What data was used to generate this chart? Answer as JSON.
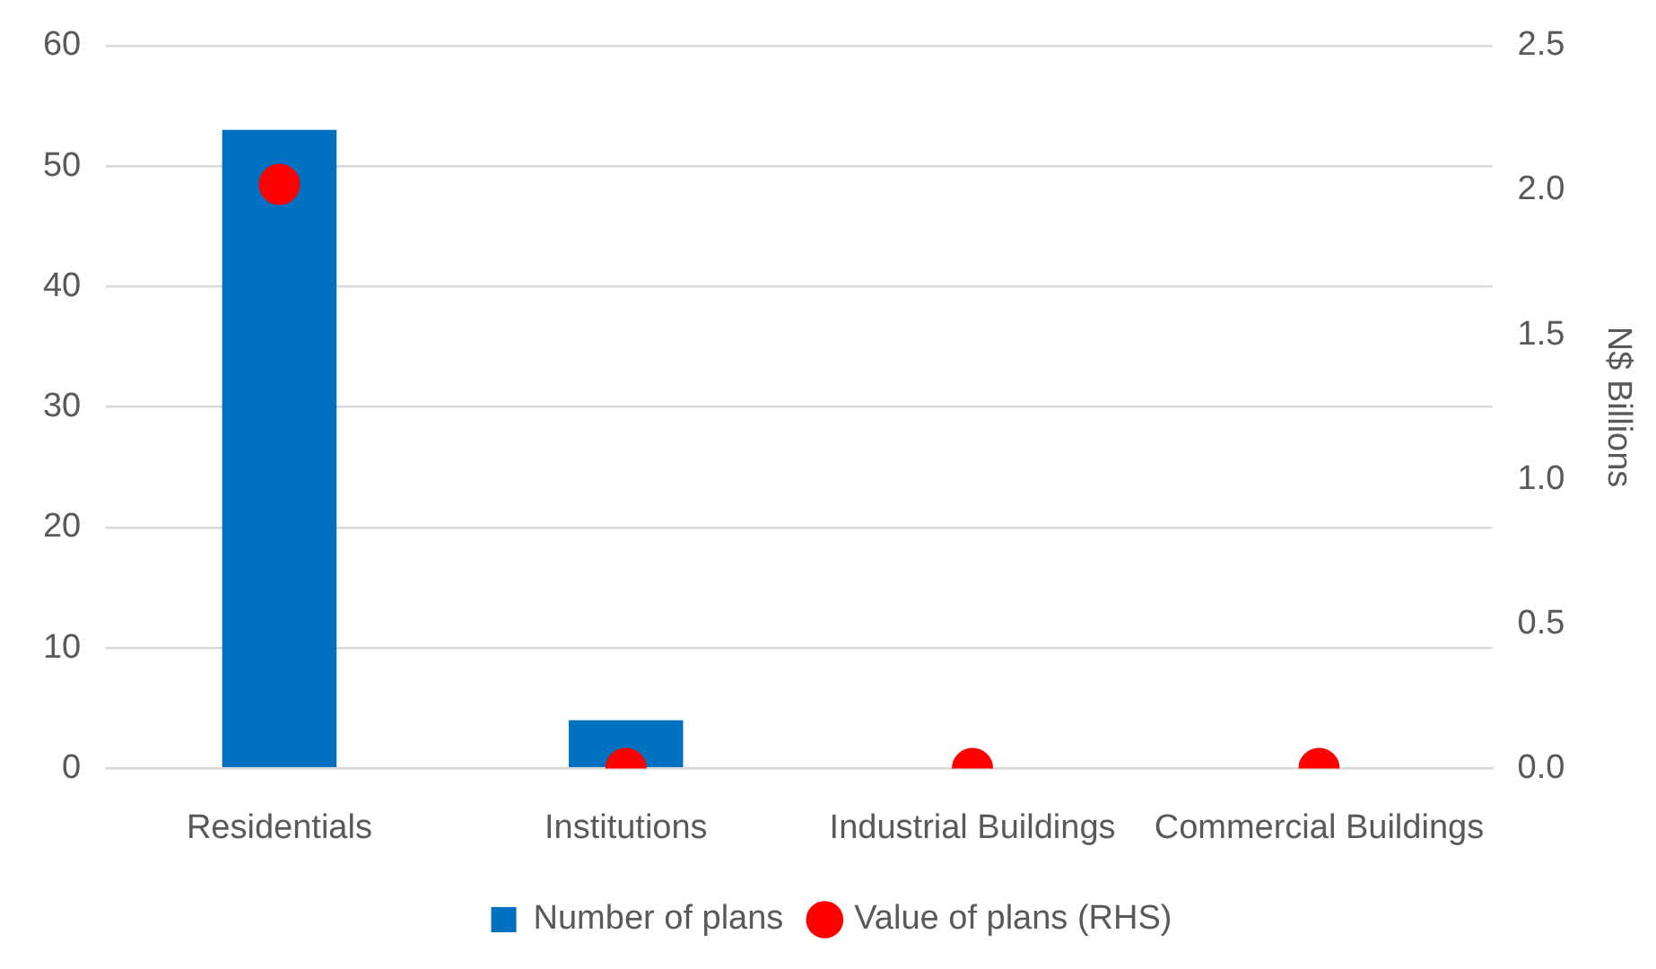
{
  "chart_data": {
    "type": "bar",
    "categories": [
      "Residentials",
      "Institutions",
      "Industrial Buildings",
      "Commercial Buildings"
    ],
    "series": [
      {
        "name": "Number of plans",
        "color": "#0070c0",
        "values": [
          53,
          4,
          0,
          0
        ]
      },
      {
        "name": "Value of plans (RHS)",
        "type": "scatter",
        "axis": "y2",
        "marker": "circle",
        "color": "#ff0000",
        "values": [
          2.02,
          0,
          0,
          0
        ]
      }
    ],
    "ylim": [
      0,
      60
    ],
    "yticks": [
      0,
      10,
      20,
      30,
      40,
      50,
      60
    ],
    "y2lim": [
      0,
      2.5
    ],
    "y2ticks": [
      {
        "value": 0,
        "label": "0.0"
      },
      {
        "value": 0.5,
        "label": "0.5"
      },
      {
        "value": 1,
        "label": "1.0"
      },
      {
        "value": 1.5,
        "label": "1.5"
      },
      {
        "value": 2,
        "label": "2.0"
      },
      {
        "value": 2.5,
        "label": "2.5"
      }
    ],
    "y2label": "N$ Billions",
    "grid": "y",
    "legend": "bottom"
  }
}
